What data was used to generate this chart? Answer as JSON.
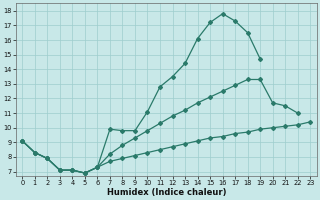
{
  "title": "",
  "xlabel": "Humidex (Indice chaleur)",
  "bg_color": "#c8e8e8",
  "line_color": "#2a7a6a",
  "grid_color": "#9ecece",
  "xlim": [
    -0.5,
    23.5
  ],
  "ylim": [
    6.7,
    18.5
  ],
  "xticks": [
    0,
    1,
    2,
    3,
    4,
    5,
    6,
    7,
    8,
    9,
    10,
    11,
    12,
    13,
    14,
    15,
    16,
    17,
    18,
    19,
    20,
    21,
    22,
    23
  ],
  "yticks": [
    7,
    8,
    9,
    10,
    11,
    12,
    13,
    14,
    15,
    16,
    17,
    18
  ],
  "curve1_x": [
    0,
    1,
    2,
    3,
    4,
    5,
    6,
    7,
    8,
    9,
    10,
    11,
    12,
    13,
    14,
    15,
    16,
    17,
    18,
    19
  ],
  "curve1_y": [
    9.1,
    8.3,
    7.9,
    7.1,
    7.1,
    6.9,
    7.3,
    9.9,
    9.8,
    9.8,
    11.1,
    12.8,
    13.5,
    14.4,
    16.1,
    17.2,
    17.8,
    17.3,
    16.5,
    14.7
  ],
  "curve2_x": [
    0,
    1,
    2,
    3,
    4,
    5,
    6,
    7,
    8,
    9,
    10,
    11,
    12,
    13,
    14,
    15,
    16,
    17,
    18,
    19,
    20,
    21,
    22
  ],
  "curve2_y": [
    9.1,
    8.3,
    7.9,
    7.1,
    7.1,
    6.9,
    7.3,
    8.2,
    8.8,
    9.3,
    9.8,
    10.3,
    10.8,
    11.2,
    11.7,
    12.1,
    12.5,
    12.9,
    13.3,
    13.3,
    11.7,
    11.5,
    11.0
  ],
  "curve3_x": [
    0,
    1,
    2,
    3,
    4,
    5,
    6,
    7,
    8,
    9,
    10,
    11,
    12,
    13,
    14,
    15,
    16,
    17,
    18,
    19,
    20,
    21,
    22,
    23
  ],
  "curve3_y": [
    9.1,
    8.3,
    7.9,
    7.1,
    7.1,
    6.9,
    7.3,
    7.7,
    7.9,
    8.1,
    8.3,
    8.5,
    8.7,
    8.9,
    9.1,
    9.3,
    9.4,
    9.6,
    9.7,
    9.9,
    10.0,
    10.1,
    10.2,
    10.4
  ]
}
